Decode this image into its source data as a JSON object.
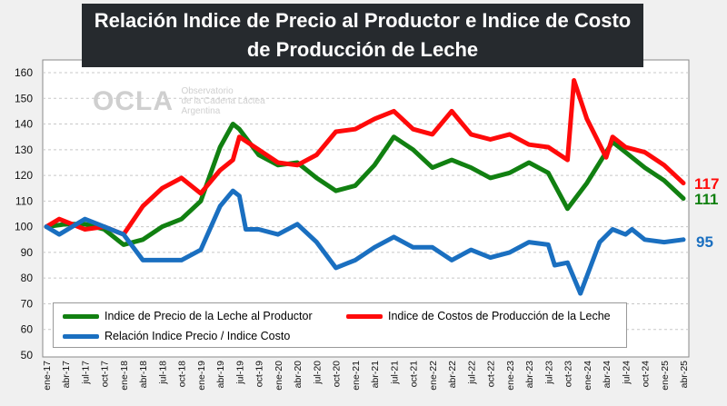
{
  "title_line1": "Relación Indice de Precio al Productor e Indice de Costo",
  "title_line2": "de Producción de Leche",
  "watermark": {
    "brand": "OCLA",
    "line1": "Observatorio",
    "line2": "de la Cadena Láctea",
    "line3": "Argentina"
  },
  "chart_data": {
    "type": "line",
    "ylim": [
      50,
      160
    ],
    "yticks": [
      50,
      60,
      70,
      80,
      90,
      100,
      110,
      120,
      130,
      140,
      150,
      160
    ],
    "xticks": [
      "ene-17",
      "abr-17",
      "jul-17",
      "oct-17",
      "ene-18",
      "abr-18",
      "jul-18",
      "oct-18",
      "ene-19",
      "abr-19",
      "jul-19",
      "oct-19",
      "ene-20",
      "abr-20",
      "jul-20",
      "oct-20",
      "ene-21",
      "abr-21",
      "jul-21",
      "oct-21",
      "ene-22",
      "abr-22",
      "jul-22",
      "oct-22",
      "ene-23",
      "abr-23",
      "jul-23",
      "oct-23",
      "ene-24",
      "abr-24",
      "jul-24",
      "oct-24",
      "ene-25",
      "abr-25"
    ],
    "grid": "horizontal dashed",
    "legend_placement": "bottom",
    "series": [
      {
        "name": "Indice de Precio de la Leche al Productor",
        "color": "#118011",
        "end_label": "111",
        "points": [
          [
            "2017-01",
            100
          ],
          [
            "2017-04",
            101
          ],
          [
            "2017-07",
            101
          ],
          [
            "2017-10",
            99
          ],
          [
            "2018-01",
            93
          ],
          [
            "2018-04",
            95
          ],
          [
            "2018-07",
            100
          ],
          [
            "2018-10",
            103
          ],
          [
            "2019-01",
            110
          ],
          [
            "2019-04",
            131
          ],
          [
            "2019-06",
            140
          ],
          [
            "2019-07",
            138
          ],
          [
            "2019-10",
            128
          ],
          [
            "2020-01",
            124
          ],
          [
            "2020-04",
            125
          ],
          [
            "2020-07",
            119
          ],
          [
            "2020-10",
            114
          ],
          [
            "2021-01",
            116
          ],
          [
            "2021-04",
            124
          ],
          [
            "2021-07",
            135
          ],
          [
            "2021-10",
            130
          ],
          [
            "2022-01",
            123
          ],
          [
            "2022-04",
            126
          ],
          [
            "2022-07",
            123
          ],
          [
            "2022-10",
            119
          ],
          [
            "2023-01",
            121
          ],
          [
            "2023-04",
            125
          ],
          [
            "2023-07",
            121
          ],
          [
            "2023-10",
            107
          ],
          [
            "2024-01",
            117
          ],
          [
            "2024-04",
            129
          ],
          [
            "2024-05",
            133
          ],
          [
            "2024-07",
            129
          ],
          [
            "2024-10",
            123
          ],
          [
            "2025-01",
            118
          ],
          [
            "2025-04",
            111
          ]
        ]
      },
      {
        "name": "Indice de Costos de Producción de la Leche",
        "color": "#ff0a0a",
        "end_label": "117",
        "points": [
          [
            "2017-01",
            100
          ],
          [
            "2017-03",
            103
          ],
          [
            "2017-07",
            99
          ],
          [
            "2017-10",
            100
          ],
          [
            "2018-01",
            97
          ],
          [
            "2018-04",
            108
          ],
          [
            "2018-07",
            115
          ],
          [
            "2018-10",
            119
          ],
          [
            "2019-01",
            113
          ],
          [
            "2019-04",
            122
          ],
          [
            "2019-06",
            126
          ],
          [
            "2019-07",
            135
          ],
          [
            "2019-10",
            130
          ],
          [
            "2020-01",
            125
          ],
          [
            "2020-04",
            124
          ],
          [
            "2020-07",
            128
          ],
          [
            "2020-10",
            137
          ],
          [
            "2021-01",
            138
          ],
          [
            "2021-04",
            142
          ],
          [
            "2021-07",
            145
          ],
          [
            "2021-10",
            138
          ],
          [
            "2022-01",
            136
          ],
          [
            "2022-04",
            145
          ],
          [
            "2022-07",
            136
          ],
          [
            "2022-10",
            134
          ],
          [
            "2023-01",
            136
          ],
          [
            "2023-04",
            132
          ],
          [
            "2023-07",
            131
          ],
          [
            "2023-10",
            126
          ],
          [
            "2023-11",
            157
          ],
          [
            "2024-01",
            142
          ],
          [
            "2024-04",
            127
          ],
          [
            "2024-05",
            135
          ],
          [
            "2024-07",
            131
          ],
          [
            "2024-10",
            129
          ],
          [
            "2025-01",
            124
          ],
          [
            "2025-04",
            117
          ]
        ]
      },
      {
        "name": "Relación Indice Precio / Indice Costo",
        "color": "#1a6fc0",
        "end_label": "95",
        "points": [
          [
            "2017-01",
            100
          ],
          [
            "2017-03",
            97
          ],
          [
            "2017-07",
            103
          ],
          [
            "2017-10",
            100
          ],
          [
            "2018-01",
            97
          ],
          [
            "2018-04",
            87
          ],
          [
            "2018-07",
            87
          ],
          [
            "2018-10",
            87
          ],
          [
            "2019-01",
            91
          ],
          [
            "2019-04",
            108
          ],
          [
            "2019-06",
            114
          ],
          [
            "2019-07",
            112
          ],
          [
            "2019-08",
            99
          ],
          [
            "2019-10",
            99
          ],
          [
            "2020-01",
            97
          ],
          [
            "2020-04",
            101
          ],
          [
            "2020-07",
            94
          ],
          [
            "2020-10",
            84
          ],
          [
            "2021-01",
            87
          ],
          [
            "2021-04",
            92
          ],
          [
            "2021-07",
            96
          ],
          [
            "2021-10",
            92
          ],
          [
            "2022-01",
            92
          ],
          [
            "2022-04",
            87
          ],
          [
            "2022-07",
            91
          ],
          [
            "2022-10",
            88
          ],
          [
            "2023-01",
            90
          ],
          [
            "2023-04",
            94
          ],
          [
            "2023-07",
            93
          ],
          [
            "2023-08",
            85
          ],
          [
            "2023-10",
            86
          ],
          [
            "2023-12",
            74
          ],
          [
            "2024-03",
            94
          ],
          [
            "2024-05",
            99
          ],
          [
            "2024-07",
            97
          ],
          [
            "2024-08",
            99
          ],
          [
            "2024-10",
            95
          ],
          [
            "2025-01",
            94
          ],
          [
            "2025-04",
            95
          ]
        ]
      }
    ]
  }
}
